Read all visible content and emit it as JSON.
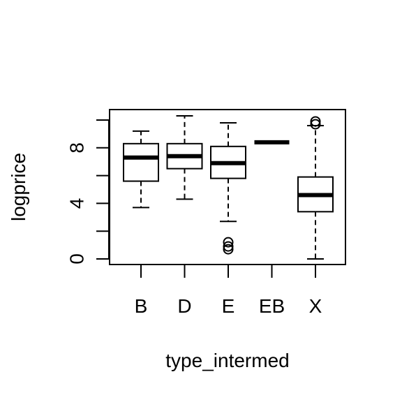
{
  "chart_data": {
    "type": "box",
    "title": "",
    "xlabel": "type_intermed",
    "ylabel": "logprice",
    "categories": [
      "B",
      "D",
      "E",
      "EB",
      "X"
    ],
    "ylim": [
      -0.4,
      10.7
    ],
    "y_ticks": [
      0,
      2,
      4,
      6,
      8,
      10
    ],
    "y_tick_labels": [
      "0",
      "4",
      "8"
    ],
    "boxes": [
      {
        "category": "B",
        "whisker_low": 3.7,
        "q1": 5.6,
        "median": 7.3,
        "q3": 8.3,
        "whisker_high": 9.2,
        "outliers": []
      },
      {
        "category": "D",
        "whisker_low": 4.3,
        "q1": 6.5,
        "median": 7.4,
        "q3": 8.3,
        "whisker_high": 10.3,
        "outliers": []
      },
      {
        "category": "E",
        "whisker_low": 2.7,
        "q1": 5.8,
        "median": 6.9,
        "q3": 8.1,
        "whisker_high": 9.8,
        "outliers": [
          1.2,
          0.9,
          0.7
        ]
      },
      {
        "category": "EB",
        "whisker_low": 8.4,
        "q1": 8.4,
        "median": 8.4,
        "q3": 8.4,
        "whisker_high": 8.4,
        "outliers": []
      },
      {
        "category": "X",
        "whisker_low": 0.0,
        "q1": 3.4,
        "median": 4.6,
        "q3": 5.9,
        "whisker_high": 9.6,
        "outliers": [
          9.7,
          9.9
        ]
      }
    ],
    "grid": false,
    "legend": "none"
  }
}
